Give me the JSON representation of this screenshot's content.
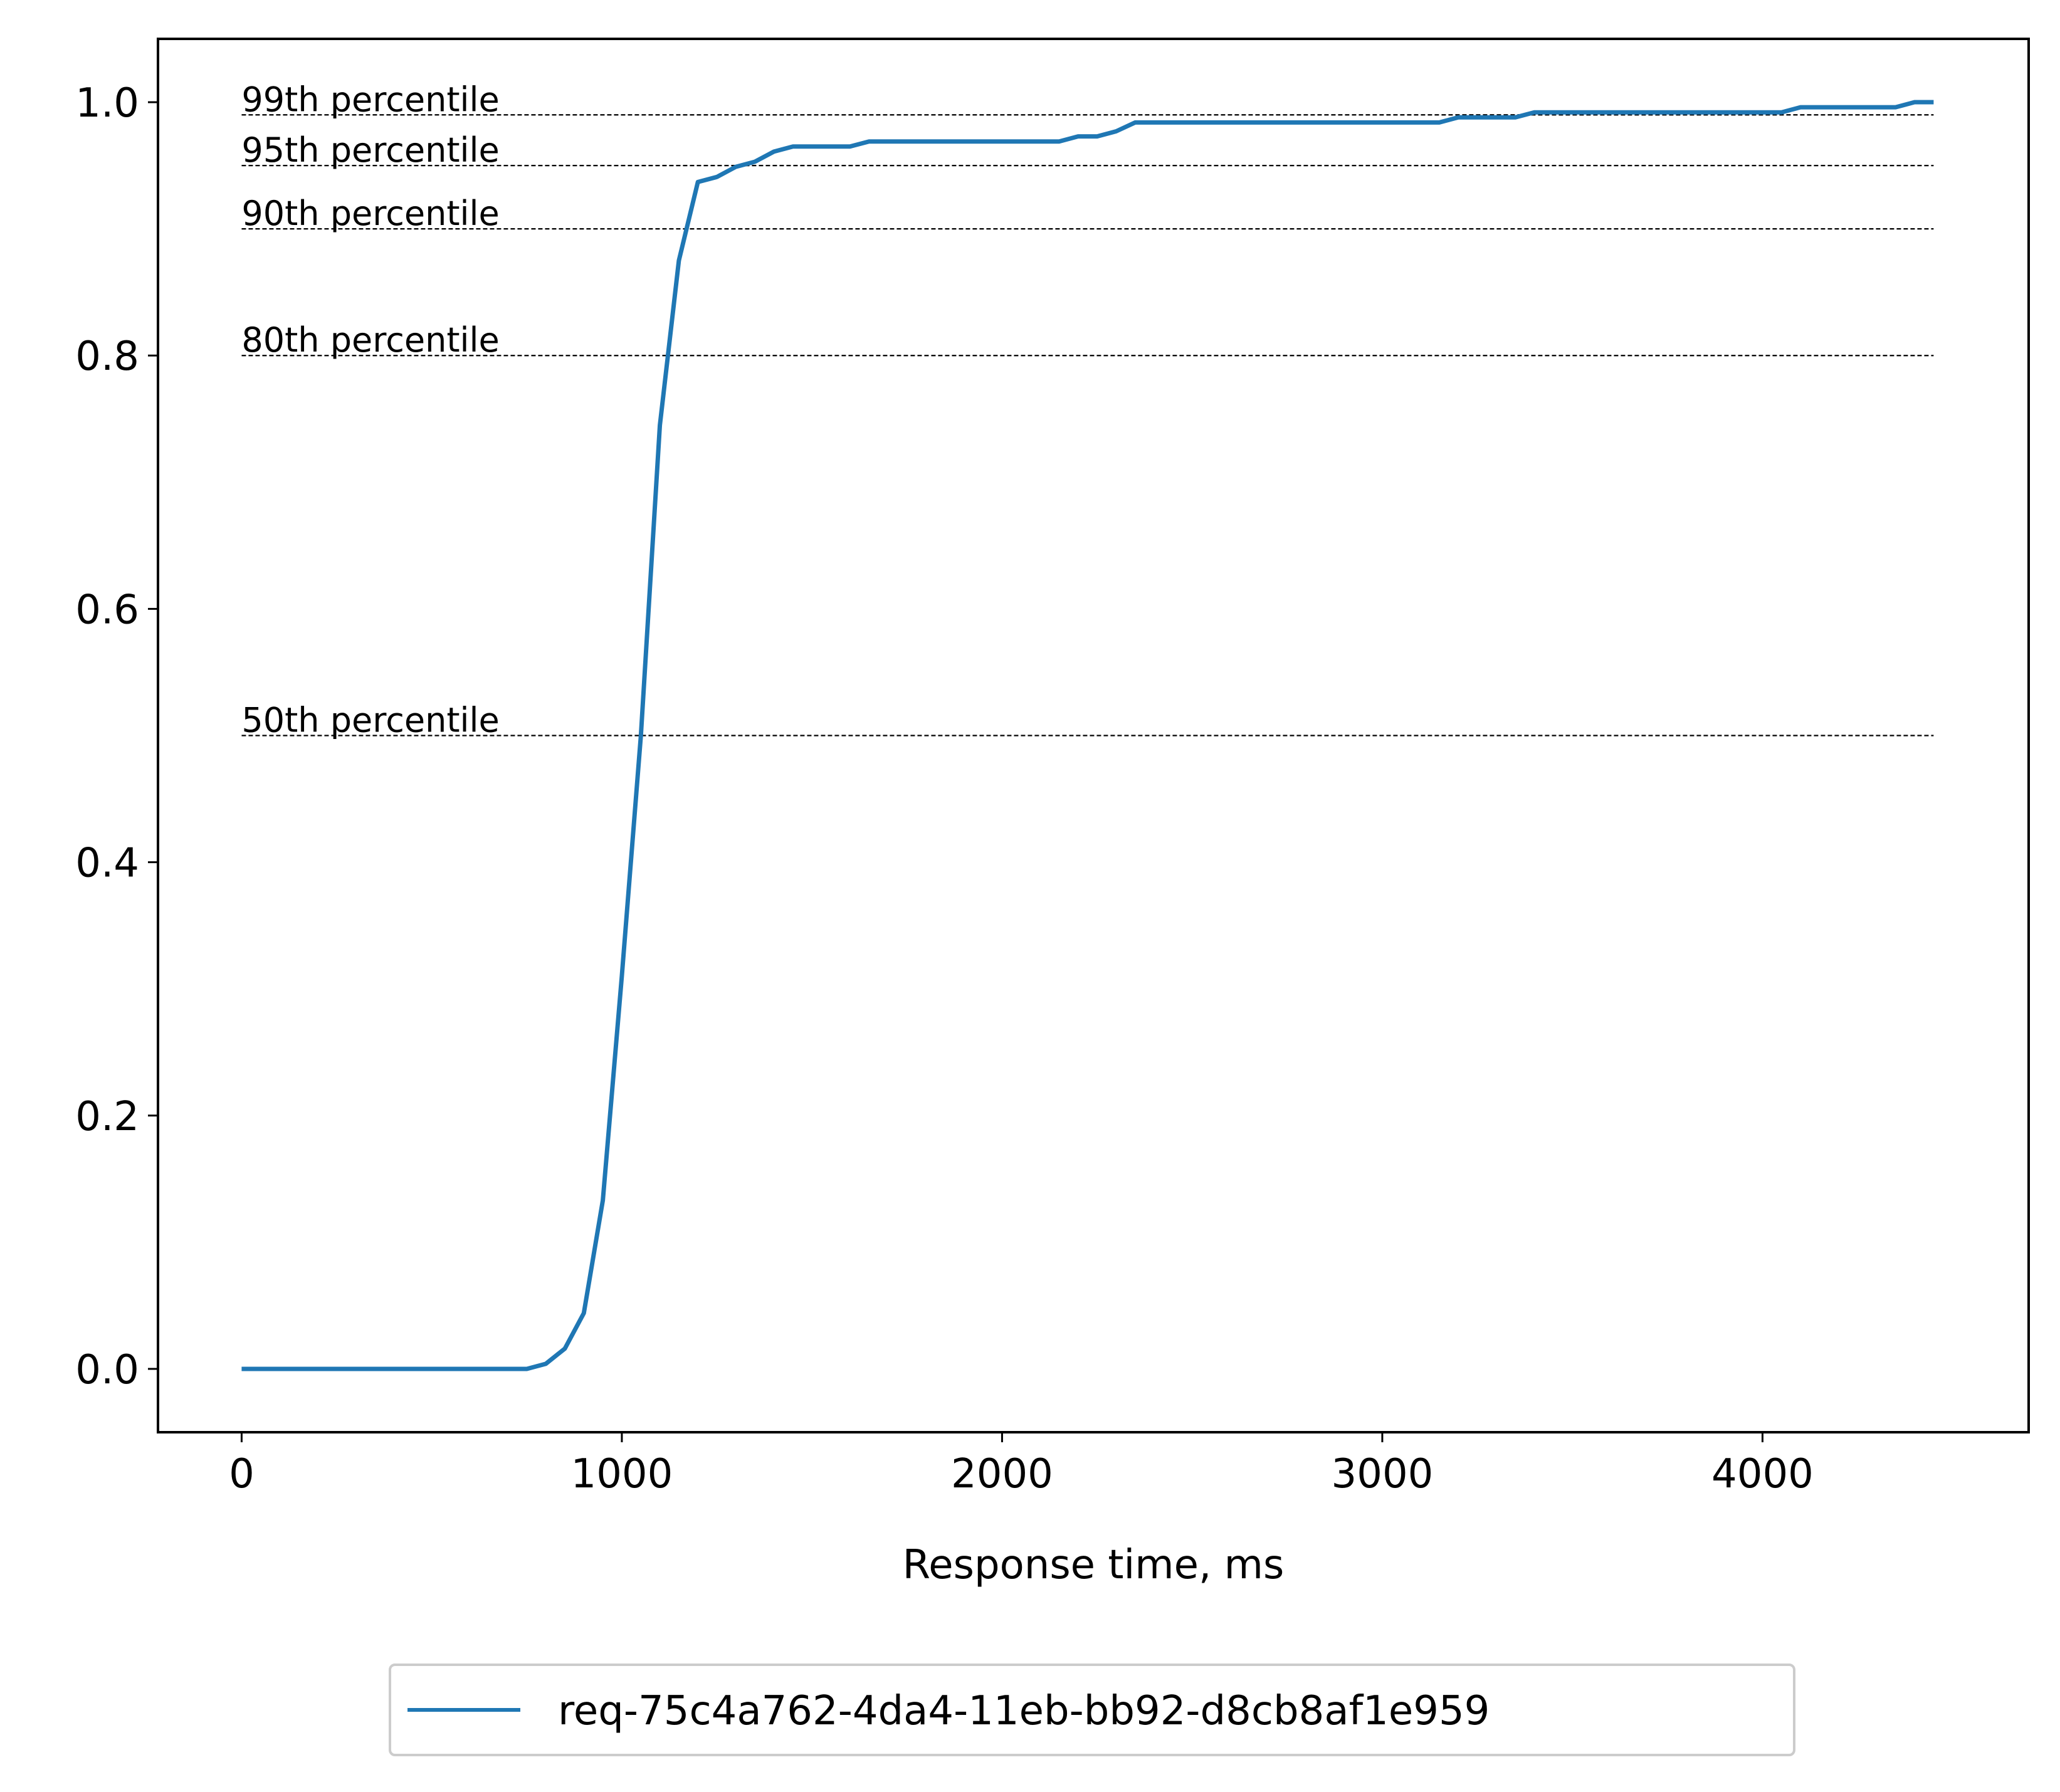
{
  "chart_data": {
    "type": "line",
    "xlabel": "Response time, ms",
    "ylabel": "",
    "xlim": [
      -220,
      4700
    ],
    "ylim": [
      -0.05,
      1.05
    ],
    "x_ticks": [
      0,
      1000,
      2000,
      3000,
      4000
    ],
    "y_ticks": [
      0.0,
      0.2,
      0.4,
      0.6,
      0.8,
      1.0
    ],
    "x_tick_labels": [
      "0",
      "1000",
      "2000",
      "3000",
      "4000"
    ],
    "y_tick_labels": [
      "0.0",
      "0.2",
      "0.4",
      "0.6",
      "0.8",
      "1.0"
    ],
    "grid": false,
    "legend_position": "below",
    "series": [
      {
        "name": "req-75c4a762-4da4-11eb-bb92-d8cb8af1e959",
        "color": "#1f77b4",
        "x": [
          0,
          750,
          800,
          850,
          900,
          950,
          1000,
          1050,
          1100,
          1150,
          1200,
          1250,
          1300,
          1350,
          1400,
          1450,
          1500,
          1550,
          1600,
          1650,
          1700,
          2150,
          2200,
          2250,
          2300,
          2350,
          2400,
          3150,
          3200,
          3350,
          3400,
          4050,
          4100,
          4350,
          4400,
          4450
        ],
        "y": [
          0.0,
          0.0,
          0.004,
          0.016,
          0.044,
          0.133,
          0.31,
          0.5,
          0.745,
          0.875,
          0.937,
          0.941,
          0.949,
          0.953,
          0.961,
          0.965,
          0.965,
          0.965,
          0.965,
          0.969,
          0.969,
          0.969,
          0.973,
          0.973,
          0.977,
          0.984,
          0.984,
          0.984,
          0.988,
          0.988,
          0.992,
          0.992,
          0.996,
          0.996,
          1.0,
          1.0
        ]
      }
    ],
    "reference_lines": [
      {
        "label": "50th percentile",
        "y": 0.5
      },
      {
        "label": "80th percentile",
        "y": 0.8
      },
      {
        "label": "90th percentile",
        "y": 0.9
      },
      {
        "label": "95th percentile",
        "y": 0.95
      },
      {
        "label": "99th percentile",
        "y": 0.99
      }
    ],
    "reference_line_x_range": [
      0,
      4450
    ],
    "reference_line_color": "#000000"
  }
}
